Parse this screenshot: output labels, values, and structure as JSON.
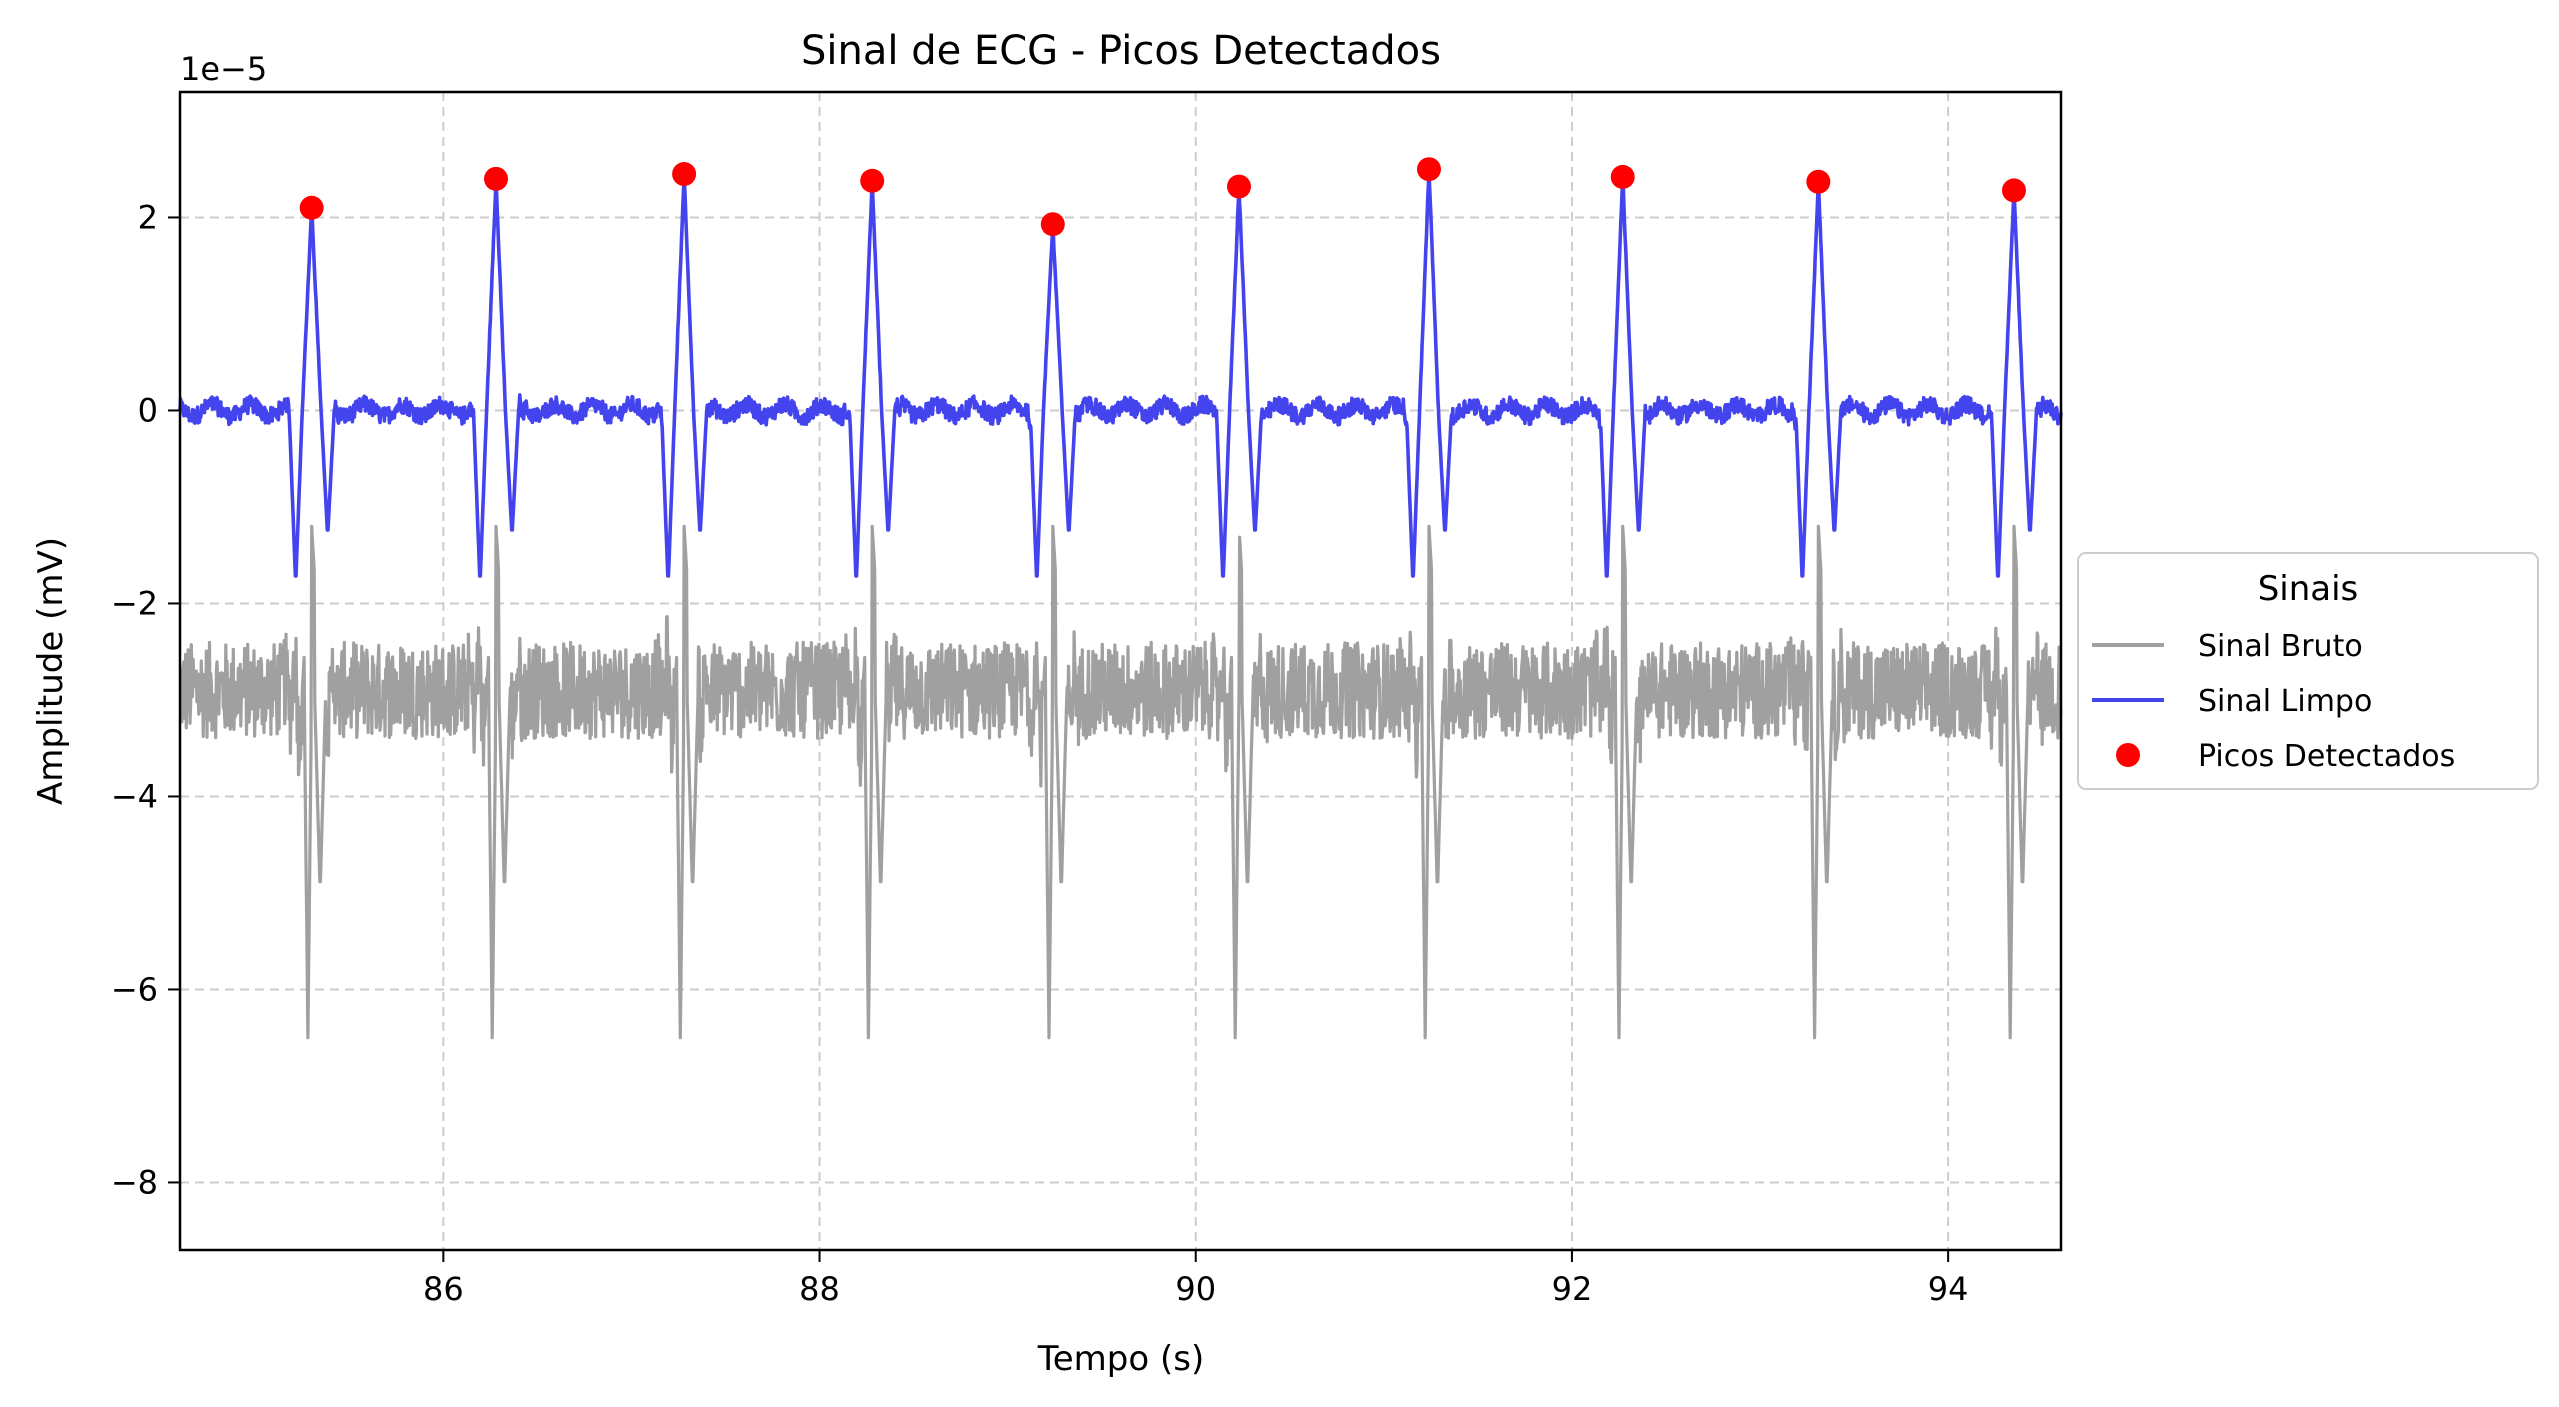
{
  "chart_data": {
    "type": "line",
    "title": "Sinal de ECG - Picos Detectados",
    "xlabel": "Tempo (s)",
    "ylabel": "Amplitude (mV)",
    "y_offset_label": "1e−5",
    "xlim": [
      84.6,
      94.6
    ],
    "ylim": [
      -8.7,
      3.3
    ],
    "y_scale_factor": 1e-05,
    "x_ticks": [
      86,
      88,
      90,
      92,
      94
    ],
    "x_tick_labels": [
      "86",
      "88",
      "90",
      "92",
      "94"
    ],
    "y_ticks": [
      2,
      0,
      -2,
      -4,
      -6,
      -8
    ],
    "y_tick_labels": [
      "2",
      "0",
      "−2",
      "−4",
      "−6",
      "−8"
    ],
    "grid": true,
    "legend": {
      "title": "Sinais",
      "placement": "right-outside",
      "entries": [
        "Sinal Bruto",
        "Sinal Limpo",
        "Picos Detectados"
      ]
    },
    "colors": {
      "raw": "#a0a0a0",
      "clean": "#4444ee",
      "peaks": "#ff0000",
      "grid": "#cccccc"
    },
    "series": [
      {
        "name": "Sinal Bruto",
        "kind": "line",
        "baseline": -2.9,
        "noise_amplitude": 0.5,
        "spike_high": -1.2,
        "spike_low": -6.5
      },
      {
        "name": "Sinal Limpo",
        "kind": "line",
        "baseline": 0.0,
        "noise_amplitude": 0.15,
        "spike_low": -1.8
      },
      {
        "name": "Picos Detectados",
        "kind": "scatter",
        "x": [
          85.3,
          86.28,
          87.28,
          88.28,
          89.24,
          90.23,
          91.24,
          92.27,
          93.31,
          94.35
        ],
        "y": [
          2.1,
          2.4,
          2.45,
          2.38,
          1.93,
          2.32,
          2.5,
          2.42,
          2.37,
          2.28
        ]
      }
    ]
  }
}
